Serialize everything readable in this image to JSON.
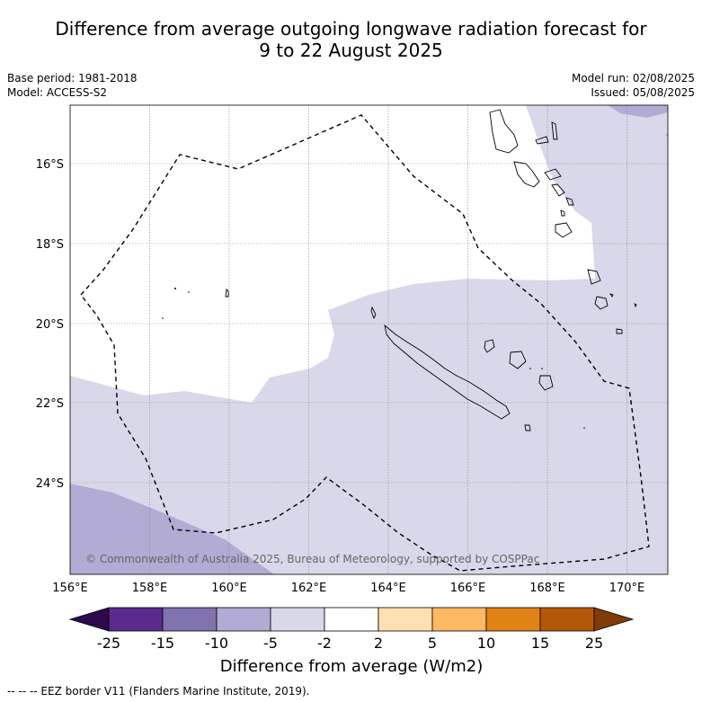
{
  "title_line1": "Difference from average outgoing longwave radiation forecast for",
  "title_line2": "9 to 22 August 2025",
  "meta_left": {
    "base_period": "Base period: 1981-2018",
    "model": "Model: ACCESS-S2"
  },
  "meta_right": {
    "model_run": "Model run: 02/08/2025",
    "issued": "Issued: 05/08/2025"
  },
  "map": {
    "lon_ticks": [
      "156°E",
      "158°E",
      "160°E",
      "162°E",
      "164°E",
      "166°E",
      "168°E",
      "170°E"
    ],
    "lat_ticks": [
      "16°S",
      "18°S",
      "20°S",
      "22°S",
      "24°S"
    ],
    "copyright": "© Commonwealth of Australia 2025, Bureau of Meteorology, supported by COSPPac"
  },
  "colorbar": {
    "label": "Difference from average (W/m2)",
    "tick_labels": [
      "-25",
      "-15",
      "-10",
      "-5",
      "-2",
      "2",
      "5",
      "10",
      "15",
      "25"
    ],
    "colors": [
      "#2d0a4e",
      "#5a2a8c",
      "#8073ae",
      "#b2abd3",
      "#d8d8ea",
      "#ffffff",
      "#ffe0b2",
      "#fdb863",
      "#e08214",
      "#b35806",
      "#7f3b08"
    ]
  },
  "footer": "--  --  -- EEZ border V11 (Flanders Marine Institute, 2019)."
}
